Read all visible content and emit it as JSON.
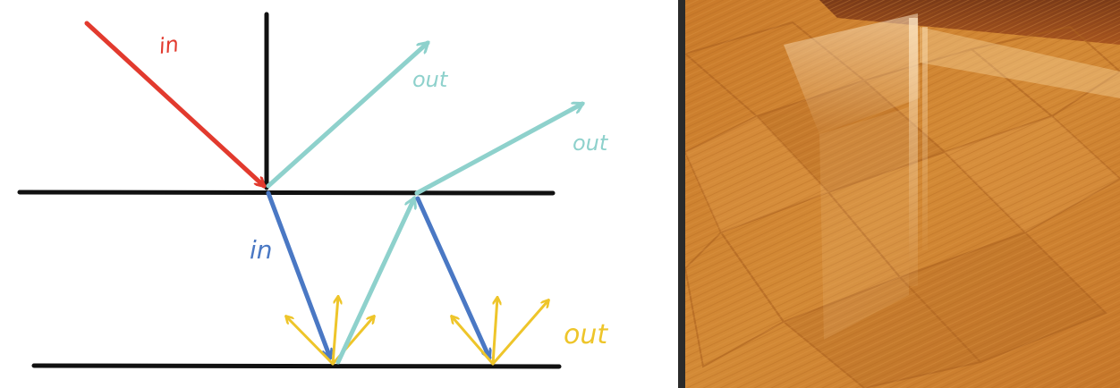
{
  "diagram": {
    "labels": {
      "incident_top": "in",
      "reflect_top": "out",
      "reflect_top_second": "out",
      "refracted_in": "in",
      "diffuse_out": "out"
    },
    "colors": {
      "surface_lines": "#111111",
      "incident_ray": "#e23a2e",
      "specular_rays": "#8ed1cc",
      "subsurface_ray": "#4a78c4",
      "diffuse_rays": "#eec52a"
    }
  },
  "photo": {
    "subject": "glossy wooden parquet floor with specular reflections"
  }
}
